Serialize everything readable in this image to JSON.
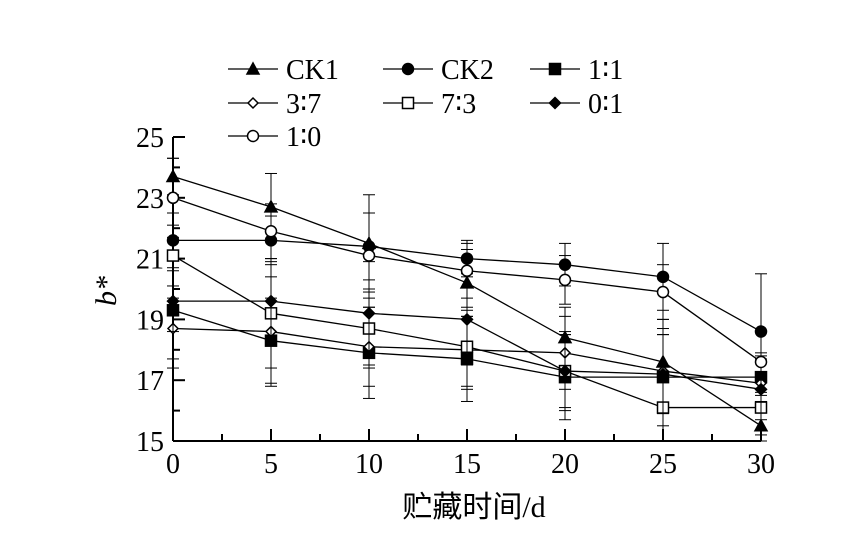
{
  "chart_data": {
    "type": "line",
    "title": "",
    "xlabel": "贮藏时间/d",
    "ylabel": "b*",
    "xlim": [
      0,
      30
    ],
    "ylim": [
      15,
      25
    ],
    "xticks": [
      0,
      5,
      10,
      15,
      20,
      25,
      30
    ],
    "yticks": [
      15,
      17,
      19,
      21,
      23,
      25
    ],
    "grid": false,
    "legend_position": "top-center",
    "x": [
      0,
      5,
      10,
      15,
      20,
      25,
      30
    ],
    "series": [
      {
        "name": "CK1",
        "marker": "triangle-filled",
        "values": [
          23.7,
          22.7,
          21.5,
          20.2,
          18.4,
          17.6,
          15.5
        ],
        "errors": [
          0.6,
          1.1,
          1.6,
          1.1,
          1.0,
          1.4,
          1.0
        ]
      },
      {
        "name": "CK2",
        "marker": "circle-filled",
        "values": [
          21.6,
          21.6,
          21.4,
          21.0,
          20.8,
          20.4,
          18.6
        ],
        "errors": [
          0.9,
          0.8,
          1.1,
          0.6,
          0.7,
          1.1,
          1.9
        ]
      },
      {
        "name": "1∶1",
        "marker": "square-filled",
        "values": [
          19.3,
          18.3,
          17.9,
          17.7,
          17.1,
          17.1,
          17.1
        ],
        "errors": [
          1.9,
          1.4,
          1.5,
          1.4,
          1.4,
          1.6,
          0.8
        ]
      },
      {
        "name": "3∶7",
        "marker": "diamond-open",
        "values": [
          18.7,
          18.6,
          18.1,
          18.0,
          17.9,
          17.3,
          16.9
        ],
        "errors": [
          1.0,
          1.8,
          1.3,
          1.3,
          1.2,
          1.2,
          0.9
        ]
      },
      {
        "name": "7∶3",
        "marker": "square-open",
        "values": [
          21.1,
          19.2,
          18.7,
          18.1,
          17.3,
          16.1,
          16.1
        ],
        "errors": [
          1.0,
          1.8,
          1.3,
          1.3,
          1.2,
          1.2,
          0.9
        ]
      },
      {
        "name": "0∶1",
        "marker": "diamond-filled",
        "values": [
          19.6,
          19.6,
          19.2,
          19.0,
          17.3,
          17.2,
          16.7
        ],
        "errors": [
          1.0,
          1.3,
          1.7,
          1.5,
          1.3,
          1.3,
          1.0
        ]
      },
      {
        "name": "1∶0",
        "marker": "circle-open",
        "values": [
          23.0,
          21.9,
          21.1,
          20.6,
          20.3,
          19.9,
          17.6
        ],
        "errors": [
          1.3,
          0.9,
          1.4,
          0.9,
          0.8,
          0.9,
          1.0
        ]
      }
    ]
  }
}
